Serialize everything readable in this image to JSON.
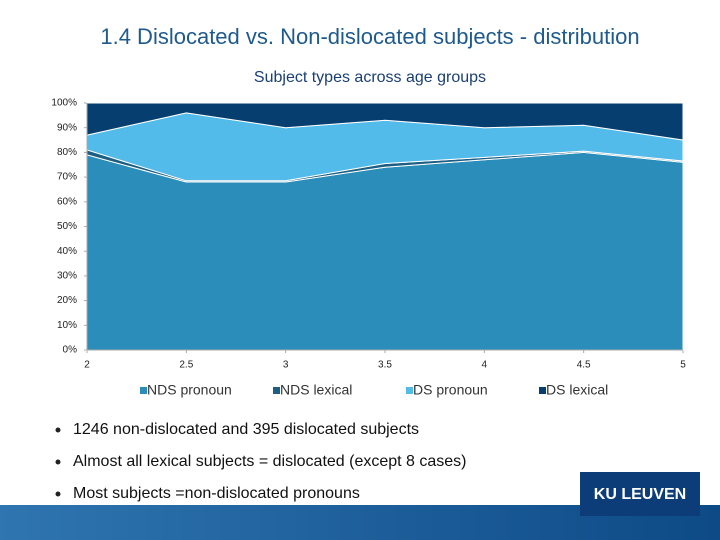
{
  "title": "1.4 Dislocated vs. Non-dislocated subjects - distribution",
  "chart_data": {
    "type": "stacked_area",
    "title": "Subject types across age groups",
    "x": [
      2,
      2.5,
      3,
      3.5,
      4,
      4.5,
      5
    ],
    "series": [
      {
        "name": "NDS pronoun",
        "color": "#2a8dba",
        "values": [
          79,
          68,
          68,
          74,
          77,
          80,
          76
        ]
      },
      {
        "name": "NDS lexical",
        "color": "#1d5f84",
        "values": [
          2,
          0.5,
          0.5,
          1.5,
          1,
          0.5,
          0.5
        ]
      },
      {
        "name": "DS pronoun",
        "color": "#52bbe9",
        "values": [
          6,
          27.5,
          21.5,
          17.5,
          12,
          10.5,
          8.5
        ]
      },
      {
        "name": "DS lexical",
        "color": "#073e70",
        "values": [
          13,
          4,
          10,
          7,
          10,
          9,
          15
        ]
      }
    ],
    "xlim": [
      2,
      5
    ],
    "xticks": [
      2,
      2.5,
      3,
      3.5,
      4,
      4.5,
      5
    ],
    "ylim": [
      0,
      100
    ],
    "yticks": [
      {
        "value": 0,
        "label": "0%"
      },
      {
        "value": 10,
        "label": "10%"
      },
      {
        "value": 20,
        "label": "20%"
      },
      {
        "value": 30,
        "label": "30%"
      },
      {
        "value": 40,
        "label": "40%"
      },
      {
        "value": 50,
        "label": "50%"
      },
      {
        "value": 60,
        "label": "60%"
      },
      {
        "value": 70,
        "label": "70%"
      },
      {
        "value": 80,
        "label": "80%"
      },
      {
        "value": 90,
        "label": "90%"
      },
      {
        "value": 100,
        "label": "100%"
      }
    ],
    "legend": "bottom"
  },
  "bullets": [
    "1246 non-dislocated and 395 dislocated subjects",
    "Almost all lexical subjects = dislocated (except 8 cases)",
    "Most subjects =non-dislocated pronouns"
  ],
  "logo": "KU LEUVEN"
}
